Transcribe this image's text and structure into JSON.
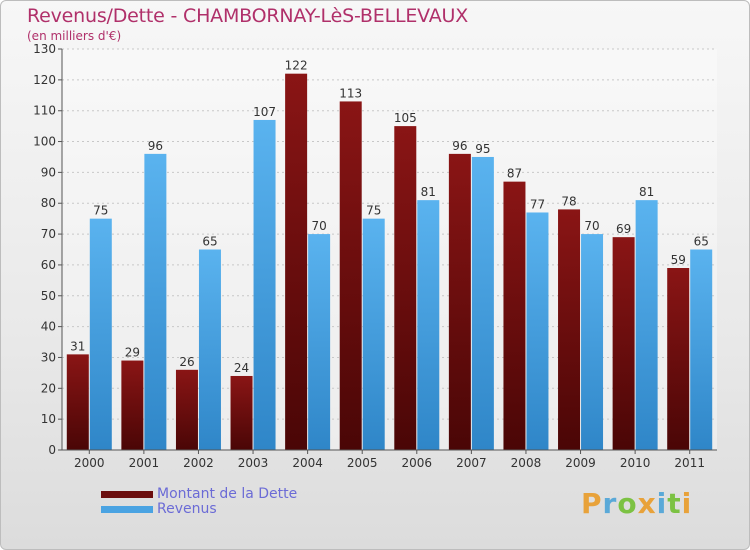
{
  "title": "Revenus/Dette - CHAMBORNAY-LèS-BELLEVAUX",
  "subtitle": "(en milliers d'€)",
  "brand": {
    "letters": [
      "P",
      "r",
      "o",
      "x",
      "i",
      "t",
      "i"
    ],
    "colors": [
      "#e8a23a",
      "#5aa9d8",
      "#7cc243",
      "#e8a23a",
      "#5aa9d8",
      "#7cc243",
      "#e8a23a"
    ]
  },
  "legend": [
    {
      "label": "Montant de la Dette",
      "color": "#6b0d0d"
    },
    {
      "label": "Revenus",
      "color": "#4aa3e2"
    }
  ],
  "chart_data": {
    "type": "bar",
    "categories": [
      "2000",
      "2001",
      "2002",
      "2003",
      "2004",
      "2005",
      "2006",
      "2007",
      "2008",
      "2009",
      "2010",
      "2011"
    ],
    "series": [
      {
        "name": "Montant de la Dette",
        "values": [
          31,
          29,
          26,
          24,
          122,
          113,
          105,
          96,
          87,
          78,
          69,
          59
        ],
        "color": "#6b0d0d"
      },
      {
        "name": "Revenus",
        "values": [
          75,
          96,
          65,
          107,
          70,
          75,
          81,
          95,
          77,
          70,
          81,
          65
        ],
        "color": "#4aa3e2"
      }
    ],
    "yticks": [
      0,
      10,
      20,
      30,
      40,
      50,
      60,
      70,
      80,
      90,
      100,
      110,
      120,
      130
    ],
    "ylim": [
      0,
      130
    ],
    "grid": true
  }
}
